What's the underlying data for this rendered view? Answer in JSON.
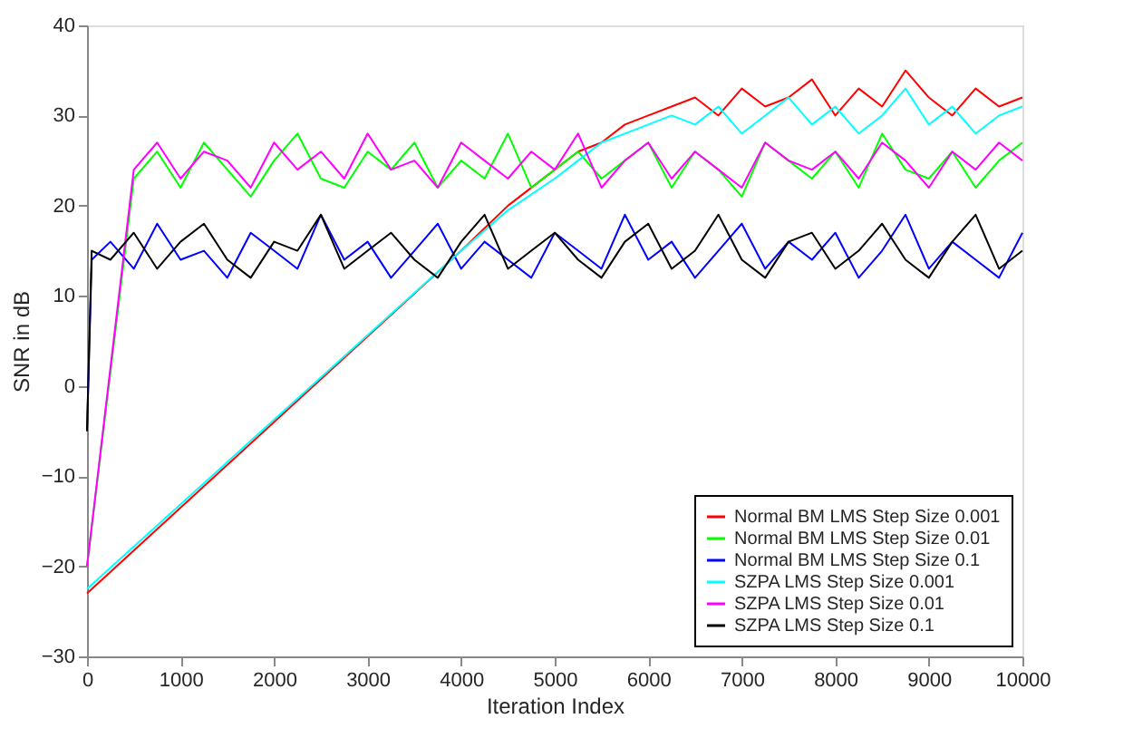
{
  "chart_data": {
    "type": "line",
    "xlabel": "Iteration Index",
    "ylabel": "SNR in dB",
    "xlim": [
      0,
      10000
    ],
    "xticks": [
      0,
      1000,
      2000,
      3000,
      4000,
      5000,
      6000,
      7000,
      8000,
      9000,
      10000
    ],
    "ylim": [
      -30,
      40
    ],
    "yticks": [
      -30,
      -20,
      -10,
      0,
      10,
      20,
      30,
      40
    ],
    "grid": false,
    "legend": "bottom right",
    "marker": "none",
    "line_style": "solid",
    "series": [
      {
        "name": "Normal BM LMS Step Size 0.001",
        "color": "#ff0000",
        "x": [
          0,
          4000,
          4500,
          5000,
          5250,
          5500,
          5750,
          6000,
          6250,
          6500,
          6750,
          7000,
          7250,
          7500,
          7750,
          8000,
          8250,
          8500,
          8750,
          9000,
          9250,
          9500,
          9750,
          10000
        ],
        "values": [
          -23,
          15,
          20,
          24,
          26,
          27,
          29,
          30,
          31,
          32,
          30,
          33,
          31,
          32,
          34,
          30,
          33,
          31,
          35,
          32,
          30,
          33,
          31,
          32
        ]
      },
      {
        "name": "Normal BM LMS Step Size 0.01",
        "color": "#00ff00",
        "x": [
          0,
          500,
          750,
          1000,
          1250,
          1500,
          1750,
          2000,
          2250,
          2500,
          2750,
          3000,
          3250,
          3500,
          3750,
          4000,
          4250,
          4500,
          4750,
          5000,
          5250,
          5500,
          5750,
          6000,
          6250,
          6500,
          6750,
          7000,
          7250,
          7500,
          7750,
          8000,
          8250,
          8500,
          8750,
          9000,
          9250,
          9500,
          9750,
          10000
        ],
        "values": [
          -20,
          23,
          26,
          22,
          27,
          24,
          21,
          25,
          28,
          23,
          22,
          26,
          24,
          27,
          22,
          25,
          23,
          28,
          22,
          24,
          26,
          23,
          25,
          27,
          22,
          26,
          24,
          21,
          27,
          25,
          23,
          26,
          22,
          28,
          24,
          23,
          26,
          22,
          25,
          27
        ]
      },
      {
        "name": "Normal BM LMS Step Size 0.1",
        "color": "#0000ff",
        "x": [
          0,
          50,
          250,
          500,
          750,
          1000,
          1250,
          1500,
          1750,
          2000,
          2250,
          2500,
          2750,
          3000,
          3250,
          3500,
          3750,
          4000,
          4250,
          4500,
          4750,
          5000,
          5250,
          5500,
          5750,
          6000,
          6250,
          6500,
          6750,
          7000,
          7250,
          7500,
          7750,
          8000,
          8250,
          8500,
          8750,
          9000,
          9250,
          9500,
          9750,
          10000
        ],
        "values": [
          -5,
          14,
          16,
          13,
          18,
          14,
          15,
          12,
          17,
          15,
          13,
          19,
          14,
          16,
          12,
          15,
          18,
          13,
          16,
          14,
          12,
          17,
          15,
          13,
          19,
          14,
          16,
          12,
          15,
          18,
          13,
          16,
          14,
          17,
          12,
          15,
          19,
          13,
          16,
          14,
          12,
          17
        ]
      },
      {
        "name": "SZPA LMS Step Size 0.001",
        "color": "#00ffff",
        "x": [
          0,
          4000,
          4500,
          5000,
          5250,
          5500,
          5750,
          6000,
          6250,
          6500,
          6750,
          7000,
          7250,
          7500,
          7750,
          8000,
          8250,
          8500,
          8750,
          9000,
          9250,
          9500,
          9750,
          10000
        ],
        "values": [
          -22.5,
          15,
          19.5,
          23,
          25,
          27,
          28,
          29,
          30,
          29,
          31,
          28,
          30,
          32,
          29,
          31,
          28,
          30,
          33,
          29,
          31,
          28,
          30,
          31
        ]
      },
      {
        "name": "SZPA LMS Step Size 0.01",
        "color": "#ff00ff",
        "x": [
          0,
          500,
          750,
          1000,
          1250,
          1500,
          1750,
          2000,
          2250,
          2500,
          2750,
          3000,
          3250,
          3500,
          3750,
          4000,
          4250,
          4500,
          4750,
          5000,
          5250,
          5500,
          5750,
          6000,
          6250,
          6500,
          6750,
          7000,
          7250,
          7500,
          7750,
          8000,
          8250,
          8500,
          8750,
          9000,
          9250,
          9500,
          9750,
          10000
        ],
        "values": [
          -20,
          24,
          27,
          23,
          26,
          25,
          22,
          27,
          24,
          26,
          23,
          28,
          24,
          25,
          22,
          27,
          25,
          23,
          26,
          24,
          28,
          22,
          25,
          27,
          23,
          26,
          24,
          22,
          27,
          25,
          24,
          26,
          23,
          27,
          25,
          22,
          26,
          24,
          27,
          25
        ]
      },
      {
        "name": "SZPA LMS Step Size 0.1",
        "color": "#000000",
        "x": [
          0,
          50,
          250,
          500,
          750,
          1000,
          1250,
          1500,
          1750,
          2000,
          2250,
          2500,
          2750,
          3000,
          3250,
          3500,
          3750,
          4000,
          4250,
          4500,
          4750,
          5000,
          5250,
          5500,
          5750,
          6000,
          6250,
          6500,
          6750,
          7000,
          7250,
          7500,
          7750,
          8000,
          8250,
          8500,
          8750,
          9000,
          9250,
          9500,
          9750,
          10000
        ],
        "values": [
          -5,
          15,
          14,
          17,
          13,
          16,
          18,
          14,
          12,
          16,
          15,
          19,
          13,
          15,
          17,
          14,
          12,
          16,
          19,
          13,
          15,
          17,
          14,
          12,
          16,
          18,
          13,
          15,
          19,
          14,
          12,
          16,
          17,
          13,
          15,
          18,
          14,
          12,
          16,
          19,
          13,
          15
        ]
      }
    ]
  }
}
